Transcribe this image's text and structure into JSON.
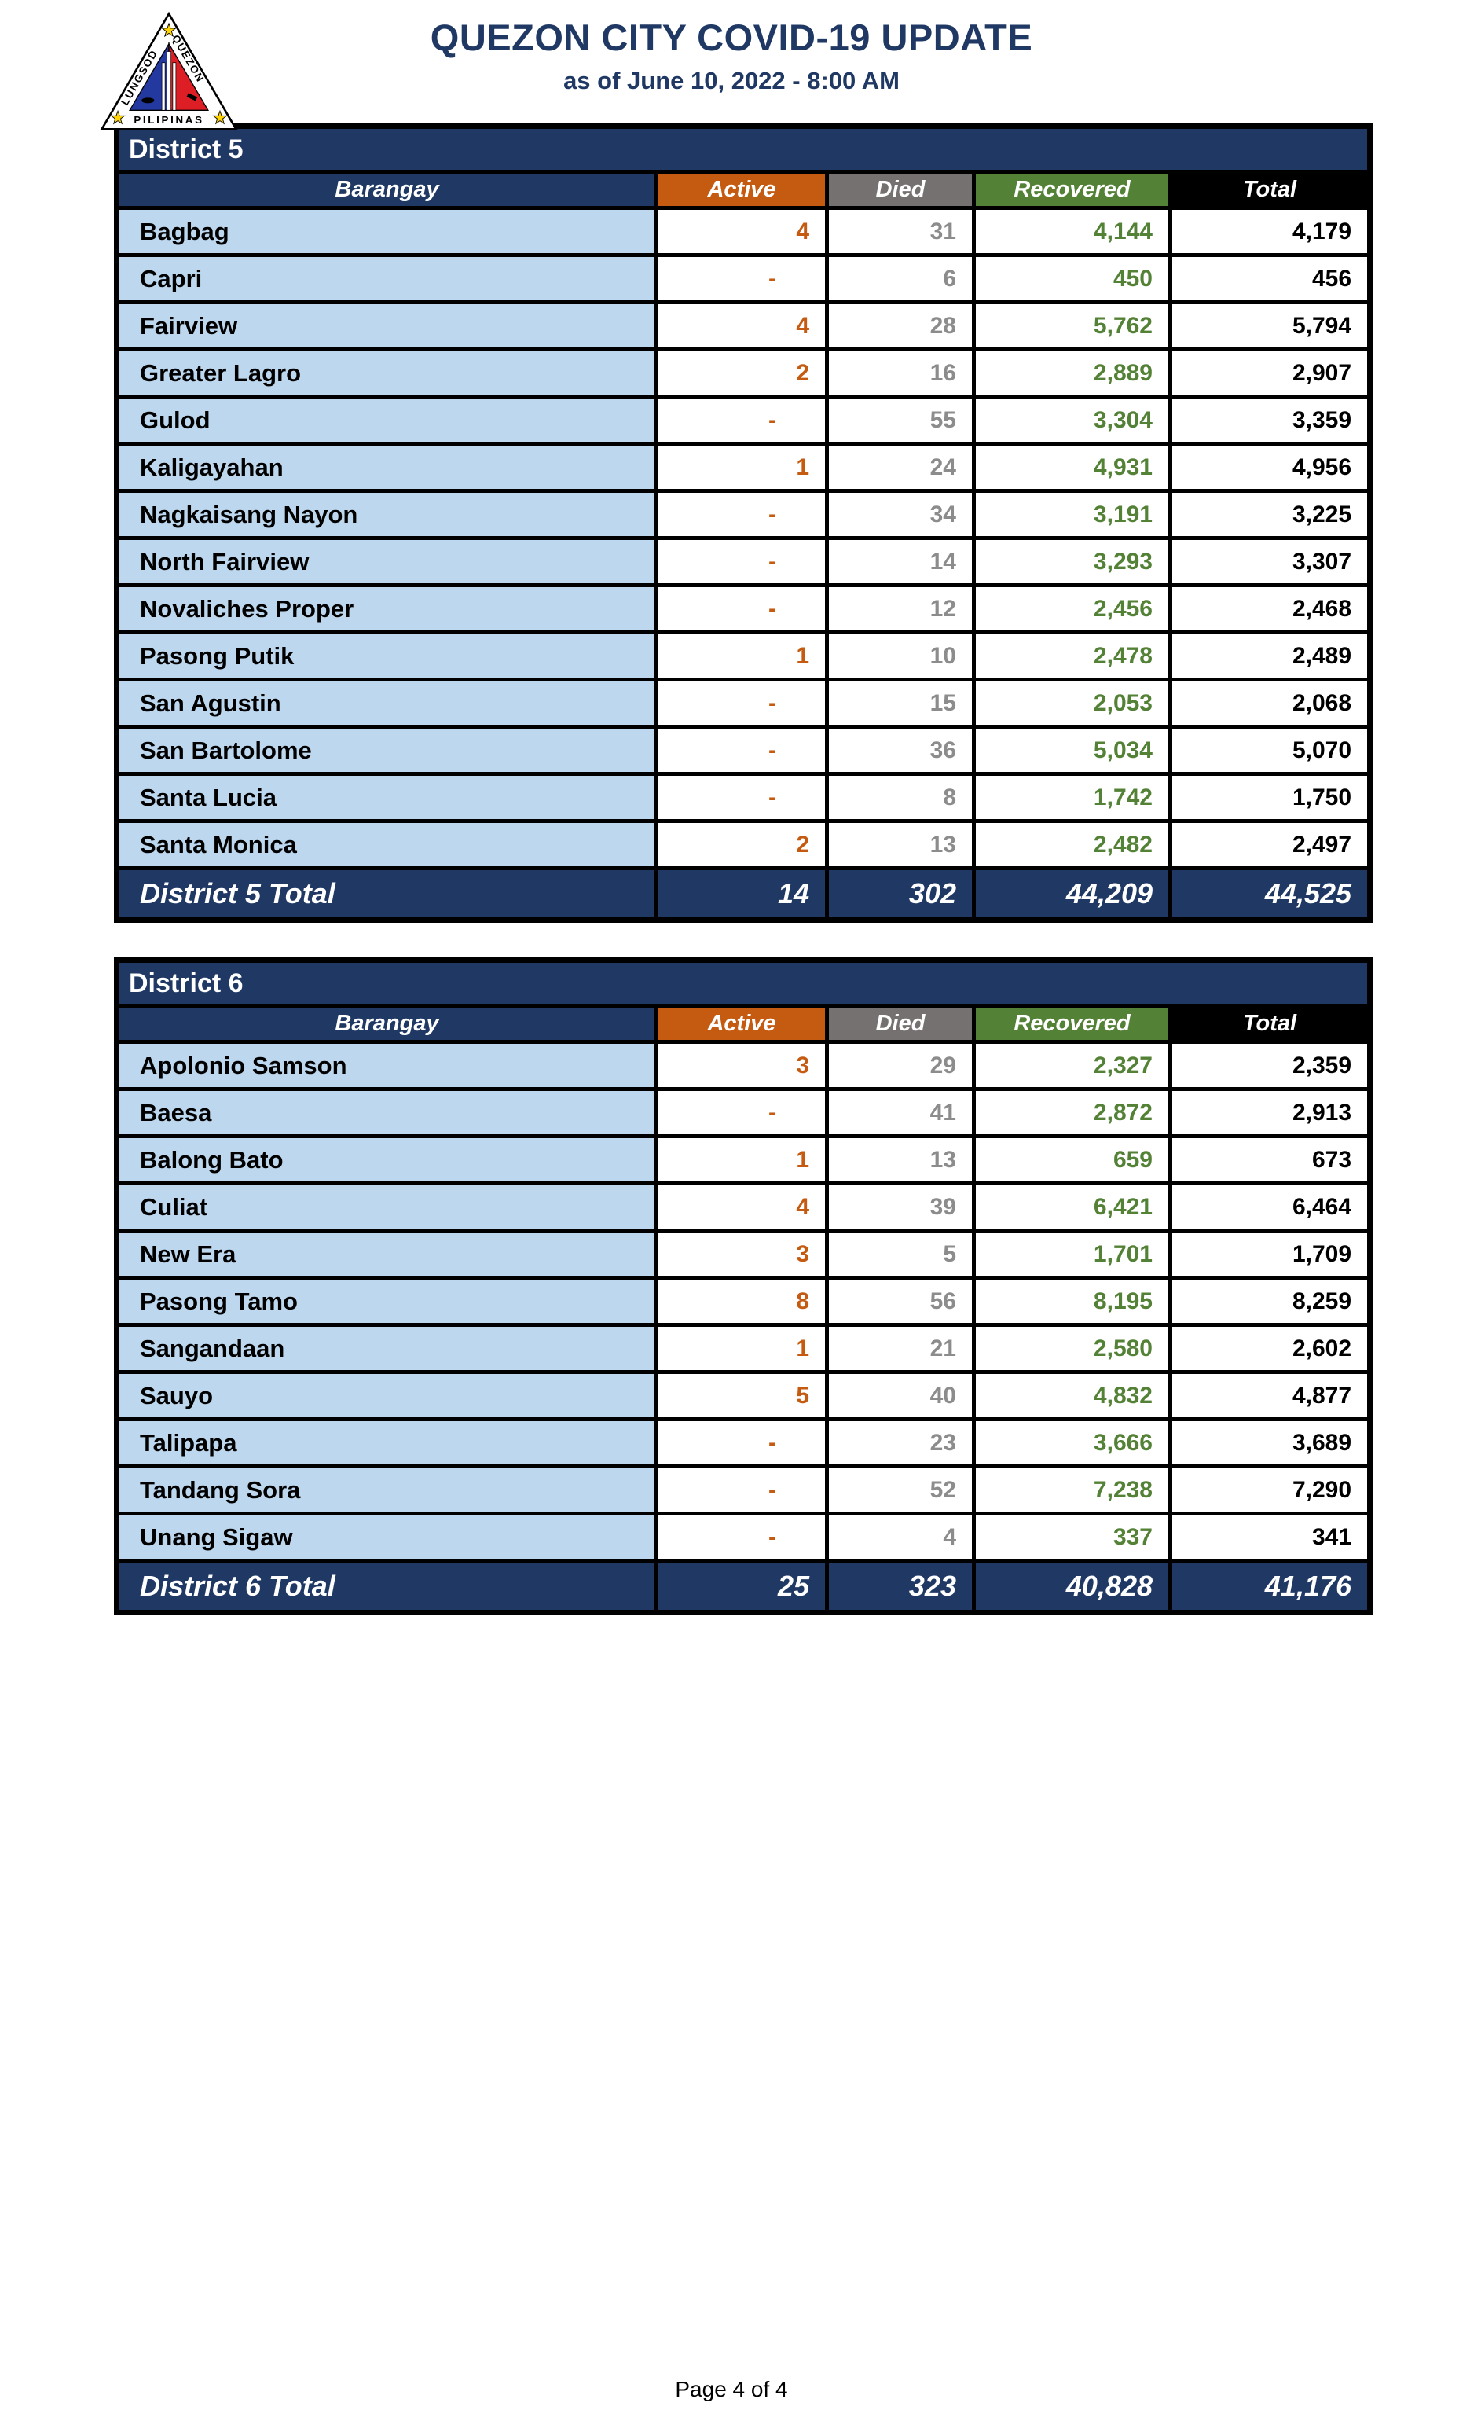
{
  "header": {
    "title": "QUEZON CITY COVID-19 UPDATE",
    "subtitle": "as of June 10, 2022 - 8:00 AM",
    "logo": {
      "name": "quezon-city-seal",
      "left_text": "LUNGSOD",
      "right_text": "QUEZON",
      "bottom_text": "PILIPINAS"
    }
  },
  "colors": {
    "title_navy": "#1F3864",
    "header_navy": "#1F3864",
    "active_orange": "#C55A11",
    "died_gray": "#767171",
    "recovered_green": "#538135",
    "total_black": "#000000",
    "barangay_cell_blue": "#BDD7EE",
    "logo_blue": "#2339A0",
    "logo_red": "#DD1E25",
    "logo_star_yellow": "#FFD400"
  },
  "columns": [
    "Barangay",
    "Active",
    "Died",
    "Recovered",
    "Total"
  ],
  "tables": [
    {
      "title": "District 5",
      "rows": [
        {
          "barangay": "Bagbag",
          "active": "4",
          "died": "31",
          "recovered": "4,144",
          "total": "4,179"
        },
        {
          "barangay": "Capri",
          "active": "-",
          "died": "6",
          "recovered": "450",
          "total": "456"
        },
        {
          "barangay": "Fairview",
          "active": "4",
          "died": "28",
          "recovered": "5,762",
          "total": "5,794"
        },
        {
          "barangay": "Greater Lagro",
          "active": "2",
          "died": "16",
          "recovered": "2,889",
          "total": "2,907"
        },
        {
          "barangay": "Gulod",
          "active": "-",
          "died": "55",
          "recovered": "3,304",
          "total": "3,359"
        },
        {
          "barangay": "Kaligayahan",
          "active": "1",
          "died": "24",
          "recovered": "4,931",
          "total": "4,956"
        },
        {
          "barangay": "Nagkaisang Nayon",
          "active": "-",
          "died": "34",
          "recovered": "3,191",
          "total": "3,225"
        },
        {
          "barangay": "North Fairview",
          "active": "-",
          "died": "14",
          "recovered": "3,293",
          "total": "3,307"
        },
        {
          "barangay": "Novaliches Proper",
          "active": "-",
          "died": "12",
          "recovered": "2,456",
          "total": "2,468"
        },
        {
          "barangay": "Pasong Putik",
          "active": "1",
          "died": "10",
          "recovered": "2,478",
          "total": "2,489"
        },
        {
          "barangay": "San Agustin",
          "active": "-",
          "died": "15",
          "recovered": "2,053",
          "total": "2,068"
        },
        {
          "barangay": "San Bartolome",
          "active": "-",
          "died": "36",
          "recovered": "5,034",
          "total": "5,070"
        },
        {
          "barangay": "Santa Lucia",
          "active": "-",
          "died": "8",
          "recovered": "1,742",
          "total": "1,750"
        },
        {
          "barangay": "Santa Monica",
          "active": "2",
          "died": "13",
          "recovered": "2,482",
          "total": "2,497"
        }
      ],
      "total": {
        "label": "District 5 Total",
        "active": "14",
        "died": "302",
        "recovered": "44,209",
        "total": "44,525"
      }
    },
    {
      "title": "District 6",
      "rows": [
        {
          "barangay": "Apolonio Samson",
          "active": "3",
          "died": "29",
          "recovered": "2,327",
          "total": "2,359"
        },
        {
          "barangay": "Baesa",
          "active": "-",
          "died": "41",
          "recovered": "2,872",
          "total": "2,913"
        },
        {
          "barangay": "Balong Bato",
          "active": "1",
          "died": "13",
          "recovered": "659",
          "total": "673"
        },
        {
          "barangay": "Culiat",
          "active": "4",
          "died": "39",
          "recovered": "6,421",
          "total": "6,464"
        },
        {
          "barangay": "New Era",
          "active": "3",
          "died": "5",
          "recovered": "1,701",
          "total": "1,709"
        },
        {
          "barangay": "Pasong Tamo",
          "active": "8",
          "died": "56",
          "recovered": "8,195",
          "total": "8,259"
        },
        {
          "barangay": "Sangandaan",
          "active": "1",
          "died": "21",
          "recovered": "2,580",
          "total": "2,602"
        },
        {
          "barangay": "Sauyo",
          "active": "5",
          "died": "40",
          "recovered": "4,832",
          "total": "4,877"
        },
        {
          "barangay": "Talipapa",
          "active": "-",
          "died": "23",
          "recovered": "3,666",
          "total": "3,689"
        },
        {
          "barangay": "Tandang Sora",
          "active": "-",
          "died": "52",
          "recovered": "7,238",
          "total": "7,290"
        },
        {
          "barangay": "Unang Sigaw",
          "active": "-",
          "died": "4",
          "recovered": "337",
          "total": "341"
        }
      ],
      "total": {
        "label": "District 6 Total",
        "active": "25",
        "died": "323",
        "recovered": "40,828",
        "total": "41,176"
      }
    }
  ],
  "footer": {
    "page_label": "Page 4 of 4"
  }
}
